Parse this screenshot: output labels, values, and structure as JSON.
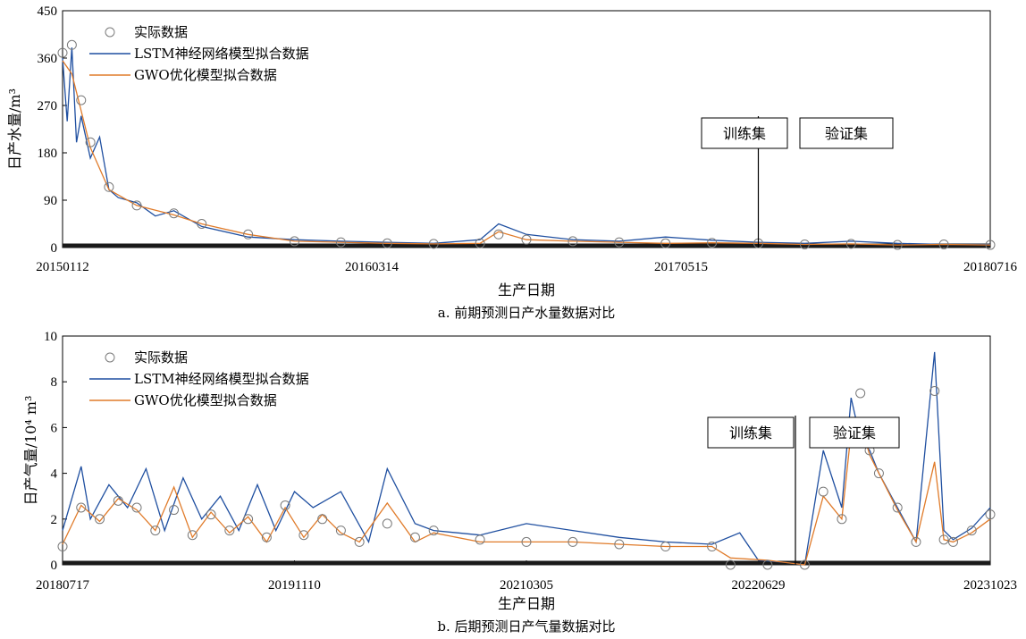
{
  "colors": {
    "actual": "#7a7a7a",
    "lstm": "#1f4fa0",
    "gwo": "#e07b2a",
    "frame": "#000000"
  },
  "chart_data": [
    {
      "type": "line",
      "caption": "a. 前期预测日产水量数据对比",
      "xlabel": "生产日期",
      "ylabel": "日产水量/m³",
      "ylim": [
        0,
        450
      ],
      "yticks": [
        "0",
        "90",
        "180",
        "270",
        "360",
        "450"
      ],
      "xticks": [
        "20150112",
        "20160314",
        "20170515",
        "20180716"
      ],
      "split_labels": [
        "训练集",
        "验证集"
      ],
      "split_fraction": 0.75,
      "legend_position": "top-left",
      "series": [
        {
          "name": "实际数据",
          "marker": "circle",
          "x": [
            0,
            0.01,
            0.02,
            0.03,
            0.05,
            0.08,
            0.12,
            0.15,
            0.2,
            0.25,
            0.3,
            0.35,
            0.4,
            0.45,
            0.47,
            0.5,
            0.55,
            0.6,
            0.65,
            0.7,
            0.75,
            0.8,
            0.85,
            0.9,
            0.95,
            1
          ],
          "values": [
            370,
            385,
            280,
            200,
            115,
            80,
            65,
            45,
            25,
            12,
            10,
            8,
            7,
            8,
            25,
            15,
            12,
            10,
            8,
            9,
            8,
            6,
            7,
            5,
            6,
            5
          ]
        },
        {
          "name": "LSTM神经网络模型拟合数据",
          "line": "solid",
          "x": [
            0,
            0.005,
            0.01,
            0.015,
            0.02,
            0.03,
            0.04,
            0.05,
            0.06,
            0.08,
            0.1,
            0.12,
            0.15,
            0.2,
            0.25,
            0.3,
            0.35,
            0.4,
            0.45,
            0.47,
            0.5,
            0.55,
            0.6,
            0.65,
            0.7,
            0.75,
            0.8,
            0.85,
            0.9,
            0.95,
            1
          ],
          "values": [
            360,
            240,
            380,
            200,
            250,
            170,
            210,
            110,
            95,
            85,
            60,
            70,
            40,
            20,
            15,
            12,
            10,
            8,
            15,
            45,
            25,
            15,
            12,
            20,
            14,
            10,
            8,
            12,
            8,
            6,
            6
          ]
        },
        {
          "name": "GWO优化模型拟合数据",
          "line": "solid",
          "x": [
            0,
            0.01,
            0.02,
            0.03,
            0.05,
            0.08,
            0.12,
            0.15,
            0.2,
            0.25,
            0.3,
            0.35,
            0.4,
            0.45,
            0.47,
            0.5,
            0.55,
            0.6,
            0.65,
            0.7,
            0.75,
            0.8,
            0.85,
            0.9,
            0.95,
            1
          ],
          "values": [
            355,
            330,
            260,
            190,
            110,
            80,
            62,
            45,
            25,
            12,
            10,
            8,
            7,
            8,
            30,
            15,
            12,
            10,
            8,
            9,
            8,
            6,
            7,
            5,
            6,
            5
          ]
        }
      ]
    },
    {
      "type": "line",
      "caption": "b. 后期预测日产气量数据对比",
      "xlabel": "生产日期",
      "ylabel": "日产气量/10⁴ m³",
      "ylim": [
        0,
        10
      ],
      "yticks": [
        "0",
        "2",
        "4",
        "6",
        "8",
        "10"
      ],
      "xticks": [
        "20180717",
        "20191110",
        "20210305",
        "20220629",
        "20231023"
      ],
      "split_labels": [
        "训练集",
        "验证集"
      ],
      "split_fraction": 0.79,
      "legend_position": "top-left",
      "series": [
        {
          "name": "实际数据",
          "marker": "circle",
          "x": [
            0,
            0.02,
            0.04,
            0.06,
            0.08,
            0.1,
            0.12,
            0.14,
            0.16,
            0.18,
            0.2,
            0.22,
            0.24,
            0.26,
            0.28,
            0.3,
            0.32,
            0.35,
            0.38,
            0.4,
            0.45,
            0.5,
            0.55,
            0.6,
            0.65,
            0.7,
            0.72,
            0.76,
            0.8,
            0.82,
            0.84,
            0.85,
            0.86,
            0.87,
            0.88,
            0.9,
            0.92,
            0.94,
            0.95,
            0.96,
            0.98,
            1
          ],
          "values": [
            0.8,
            2.5,
            2.0,
            2.8,
            2.5,
            1.5,
            2.4,
            1.3,
            2.2,
            1.5,
            2.0,
            1.2,
            2.6,
            1.3,
            2.0,
            1.5,
            1.0,
            1.8,
            1.2,
            1.5,
            1.1,
            1.0,
            1.0,
            0.9,
            0.8,
            0.8,
            0.0,
            0.0,
            0.0,
            3.2,
            2.0,
            6.0,
            7.5,
            5.0,
            4.0,
            2.5,
            1.0,
            7.6,
            1.1,
            1.0,
            1.5,
            2.2
          ]
        },
        {
          "name": "LSTM神经网络模型拟合数据",
          "line": "solid",
          "x": [
            0,
            0.02,
            0.03,
            0.05,
            0.07,
            0.09,
            0.11,
            0.13,
            0.15,
            0.17,
            0.19,
            0.21,
            0.23,
            0.25,
            0.27,
            0.3,
            0.33,
            0.35,
            0.38,
            0.4,
            0.45,
            0.5,
            0.55,
            0.6,
            0.65,
            0.7,
            0.73,
            0.75,
            0.78,
            0.8,
            0.82,
            0.84,
            0.85,
            0.86,
            0.87,
            0.88,
            0.9,
            0.92,
            0.94,
            0.95,
            0.96,
            0.98,
            1
          ],
          "values": [
            1.5,
            4.3,
            2.0,
            3.5,
            2.5,
            4.2,
            1.5,
            3.8,
            2.0,
            3.0,
            1.5,
            3.5,
            1.5,
            3.2,
            2.5,
            3.2,
            1.0,
            4.2,
            1.8,
            1.5,
            1.3,
            1.8,
            1.5,
            1.2,
            1.0,
            0.9,
            1.4,
            0.2,
            0.1,
            0.0,
            5.0,
            2.5,
            7.3,
            5.5,
            5.0,
            4.0,
            2.5,
            1.0,
            9.3,
            1.5,
            1.1,
            1.6,
            2.5
          ]
        },
        {
          "name": "GWO优化模型拟合数据",
          "line": "solid",
          "x": [
            0,
            0.02,
            0.04,
            0.06,
            0.08,
            0.1,
            0.12,
            0.14,
            0.16,
            0.18,
            0.2,
            0.22,
            0.24,
            0.26,
            0.28,
            0.3,
            0.32,
            0.35,
            0.38,
            0.4,
            0.45,
            0.5,
            0.55,
            0.6,
            0.65,
            0.7,
            0.72,
            0.76,
            0.8,
            0.82,
            0.84,
            0.85,
            0.86,
            0.87,
            0.88,
            0.9,
            0.92,
            0.94,
            0.95,
            0.96,
            0.98,
            1
          ],
          "values": [
            0.9,
            2.6,
            1.9,
            2.9,
            2.4,
            1.5,
            3.4,
            1.2,
            2.3,
            1.4,
            2.1,
            1.0,
            2.5,
            1.2,
            2.2,
            1.4,
            1.0,
            2.7,
            1.0,
            1.4,
            1.0,
            1.0,
            1.0,
            0.9,
            0.8,
            0.8,
            0.3,
            0.2,
            0.0,
            3.0,
            2.0,
            5.8,
            6.2,
            4.8,
            4.0,
            2.4,
            1.0,
            4.5,
            1.1,
            1.0,
            1.4,
            2.0
          ]
        }
      ]
    }
  ]
}
